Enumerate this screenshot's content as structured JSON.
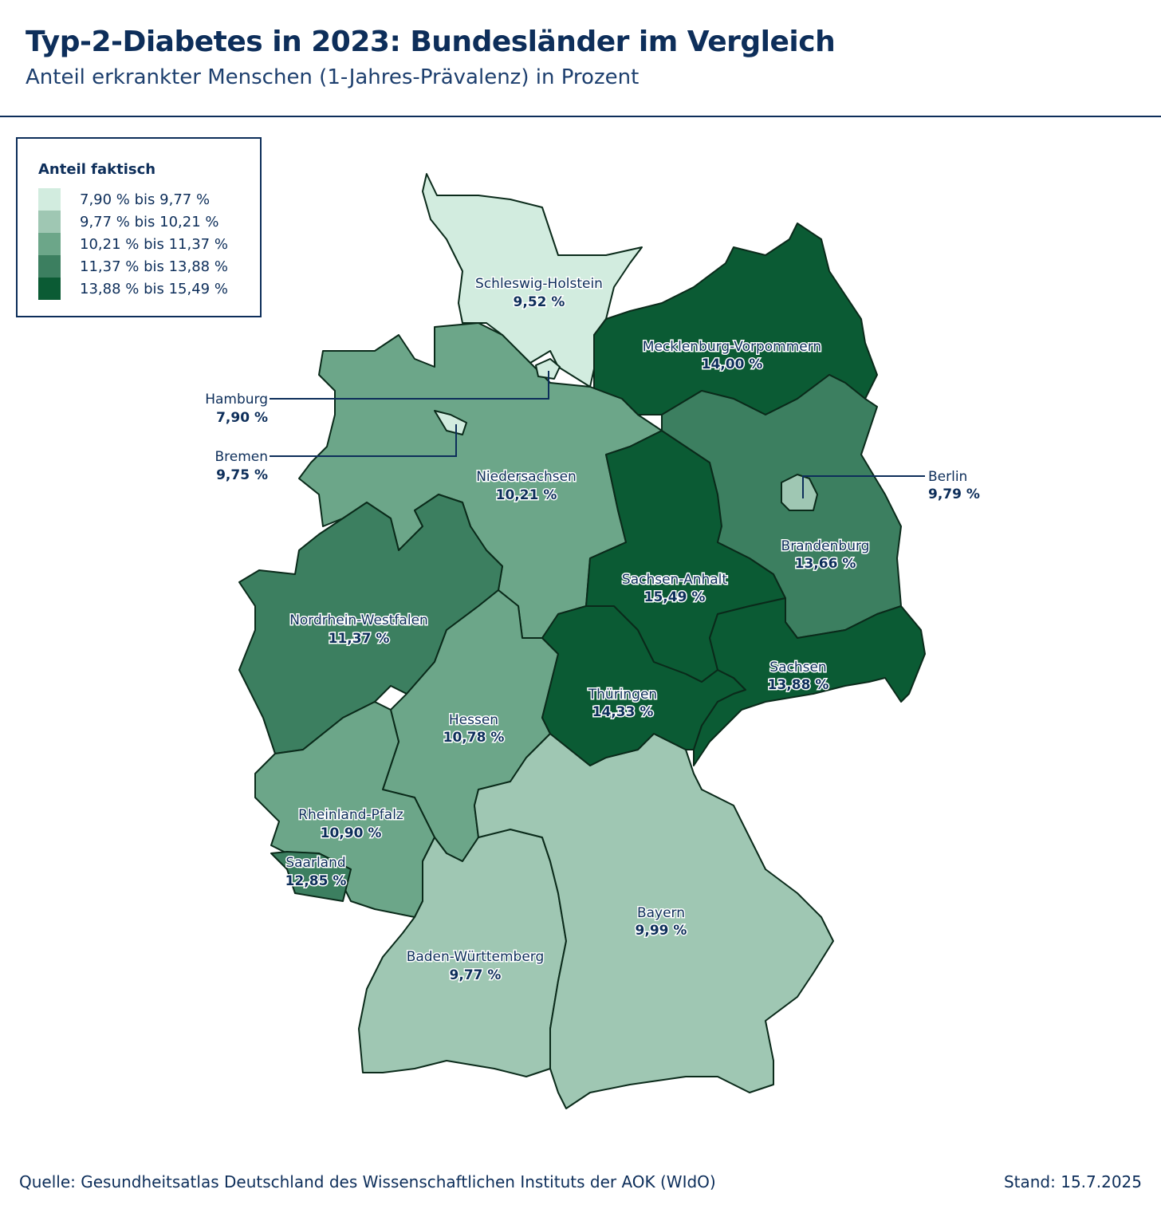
{
  "header": {
    "title": "Typ-2-Diabetes in 2023: Bundesländer im Vergleich",
    "subtitle": "Anteil erkrankter Menschen (1-Jahres-Prävalenz) in Prozent"
  },
  "legend": {
    "title": "Anteil faktisch",
    "classes": [
      {
        "label": "7,90 % bis 9,77 %",
        "color": "#d2ecdf"
      },
      {
        "label": "9,77 % bis 10,21 %",
        "color": "#9fc7b3"
      },
      {
        "label": "10,21 % bis 11,37 %",
        "color": "#6ca689"
      },
      {
        "label": "11,37 % bis 13,88 %",
        "color": "#3c7f60"
      },
      {
        "label": "13,88 % bis 15,49 %",
        "color": "#0b5b34"
      }
    ]
  },
  "states": {
    "sh": {
      "name": "Schleswig-Holstein",
      "value": "9,52 %",
      "class": 0
    },
    "mv": {
      "name": "Mecklenburg-Vorpommern",
      "value": "14,00 %",
      "class": 4
    },
    "hh": {
      "name": "Hamburg",
      "value": "7,90 %",
      "class": 0
    },
    "hb": {
      "name": "Bremen",
      "value": "9,75 %",
      "class": 0
    },
    "ni": {
      "name": "Niedersachsen",
      "value": "10,21 %",
      "class": 2
    },
    "be": {
      "name": "Berlin",
      "value": "9,79 %",
      "class": 1
    },
    "bb": {
      "name": "Brandenburg",
      "value": "13,66 %",
      "class": 3
    },
    "st": {
      "name": "Sachsen-Anhalt",
      "value": "15,49 %",
      "class": 4
    },
    "nw": {
      "name": "Nordrhein-Westfalen",
      "value": "11,37 %",
      "class": 3
    },
    "sn": {
      "name": "Sachsen",
      "value": "13,88 %",
      "class": 4
    },
    "th": {
      "name": "Thüringen",
      "value": "14,33 %",
      "class": 4
    },
    "he": {
      "name": "Hessen",
      "value": "10,78 %",
      "class": 2
    },
    "rp": {
      "name": "Rheinland-Pfalz",
      "value": "10,90 %",
      "class": 2
    },
    "sl": {
      "name": "Saarland",
      "value": "12,85 %",
      "class": 3
    },
    "bw": {
      "name": "Baden-Württemberg",
      "value": "9,77 %",
      "class": 1
    },
    "by": {
      "name": "Bayern",
      "value": "9,99 %",
      "class": 1
    }
  },
  "footer": {
    "source": "Quelle: Gesundheitsatlas Deutschland des Wissenschaftlichen Instituts der AOK (WIdO)",
    "date": "Stand: 15.7.2025"
  }
}
